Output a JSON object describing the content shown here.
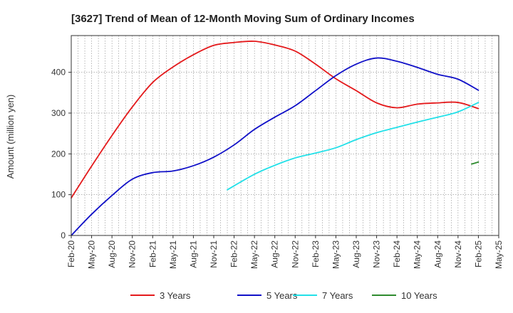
{
  "chart_data": {
    "type": "line",
    "title": "[3627]  Trend of Mean of 12-Month Moving Sum of Ordinary Incomes",
    "ylabel": "Amount (million yen)",
    "xlabel": "",
    "ylim": [
      0,
      490
    ],
    "yticks": [
      0,
      100,
      200,
      300,
      400
    ],
    "x_range": [
      "2020-02",
      "2025-05"
    ],
    "x_tick_labels": [
      "Feb-20",
      "May-20",
      "Aug-20",
      "Nov-20",
      "Feb-21",
      "May-21",
      "Aug-21",
      "Nov-21",
      "Feb-22",
      "May-22",
      "Aug-22",
      "Nov-22",
      "Feb-23",
      "May-23",
      "Aug-23",
      "Nov-23",
      "Feb-24",
      "May-24",
      "Aug-24",
      "Nov-24",
      "Feb-25",
      "May-25"
    ],
    "grid": true,
    "legend_position": "bottom",
    "series": [
      {
        "name": "3 Years",
        "color": "#e41a1c",
        "points": [
          [
            "2020-02",
            92
          ],
          [
            "2020-05",
            170
          ],
          [
            "2020-08",
            245
          ],
          [
            "2020-11",
            315
          ],
          [
            "2021-02",
            375
          ],
          [
            "2021-05",
            413
          ],
          [
            "2021-08",
            443
          ],
          [
            "2021-11",
            466
          ],
          [
            "2022-02",
            473
          ],
          [
            "2022-05",
            476
          ],
          [
            "2022-08",
            467
          ],
          [
            "2022-11",
            452
          ],
          [
            "2023-02",
            420
          ],
          [
            "2023-05",
            384
          ],
          [
            "2023-08",
            355
          ],
          [
            "2023-11",
            325
          ],
          [
            "2024-02",
            313
          ],
          [
            "2024-05",
            322
          ],
          [
            "2024-08",
            325
          ],
          [
            "2024-11",
            326
          ],
          [
            "2025-02",
            311
          ]
        ]
      },
      {
        "name": "5 Years",
        "color": "#1010c8",
        "points": [
          [
            "2020-02",
            0
          ],
          [
            "2020-05",
            52
          ],
          [
            "2020-08",
            98
          ],
          [
            "2020-11",
            138
          ],
          [
            "2021-02",
            154
          ],
          [
            "2021-05",
            158
          ],
          [
            "2021-08",
            171
          ],
          [
            "2021-11",
            192
          ],
          [
            "2022-02",
            222
          ],
          [
            "2022-05",
            260
          ],
          [
            "2022-08",
            290
          ],
          [
            "2022-11",
            318
          ],
          [
            "2023-02",
            355
          ],
          [
            "2023-05",
            392
          ],
          [
            "2023-08",
            420
          ],
          [
            "2023-11",
            435
          ],
          [
            "2024-02",
            427
          ],
          [
            "2024-05",
            412
          ],
          [
            "2024-08",
            395
          ],
          [
            "2024-11",
            383
          ],
          [
            "2025-02",
            356
          ]
        ]
      },
      {
        "name": "7 Years",
        "color": "#22e0e8",
        "points": [
          [
            "2022-01",
            112
          ],
          [
            "2022-05",
            150
          ],
          [
            "2022-08",
            172
          ],
          [
            "2022-11",
            190
          ],
          [
            "2023-02",
            202
          ],
          [
            "2023-05",
            215
          ],
          [
            "2023-08",
            235
          ],
          [
            "2023-11",
            252
          ],
          [
            "2024-02",
            265
          ],
          [
            "2024-05",
            278
          ],
          [
            "2024-08",
            290
          ],
          [
            "2024-11",
            303
          ],
          [
            "2025-02",
            326
          ]
        ]
      },
      {
        "name": "10 Years",
        "color": "#2e8b2e",
        "points": [
          [
            "2025-01",
            175
          ],
          [
            "2025-02",
            180
          ]
        ]
      }
    ]
  }
}
